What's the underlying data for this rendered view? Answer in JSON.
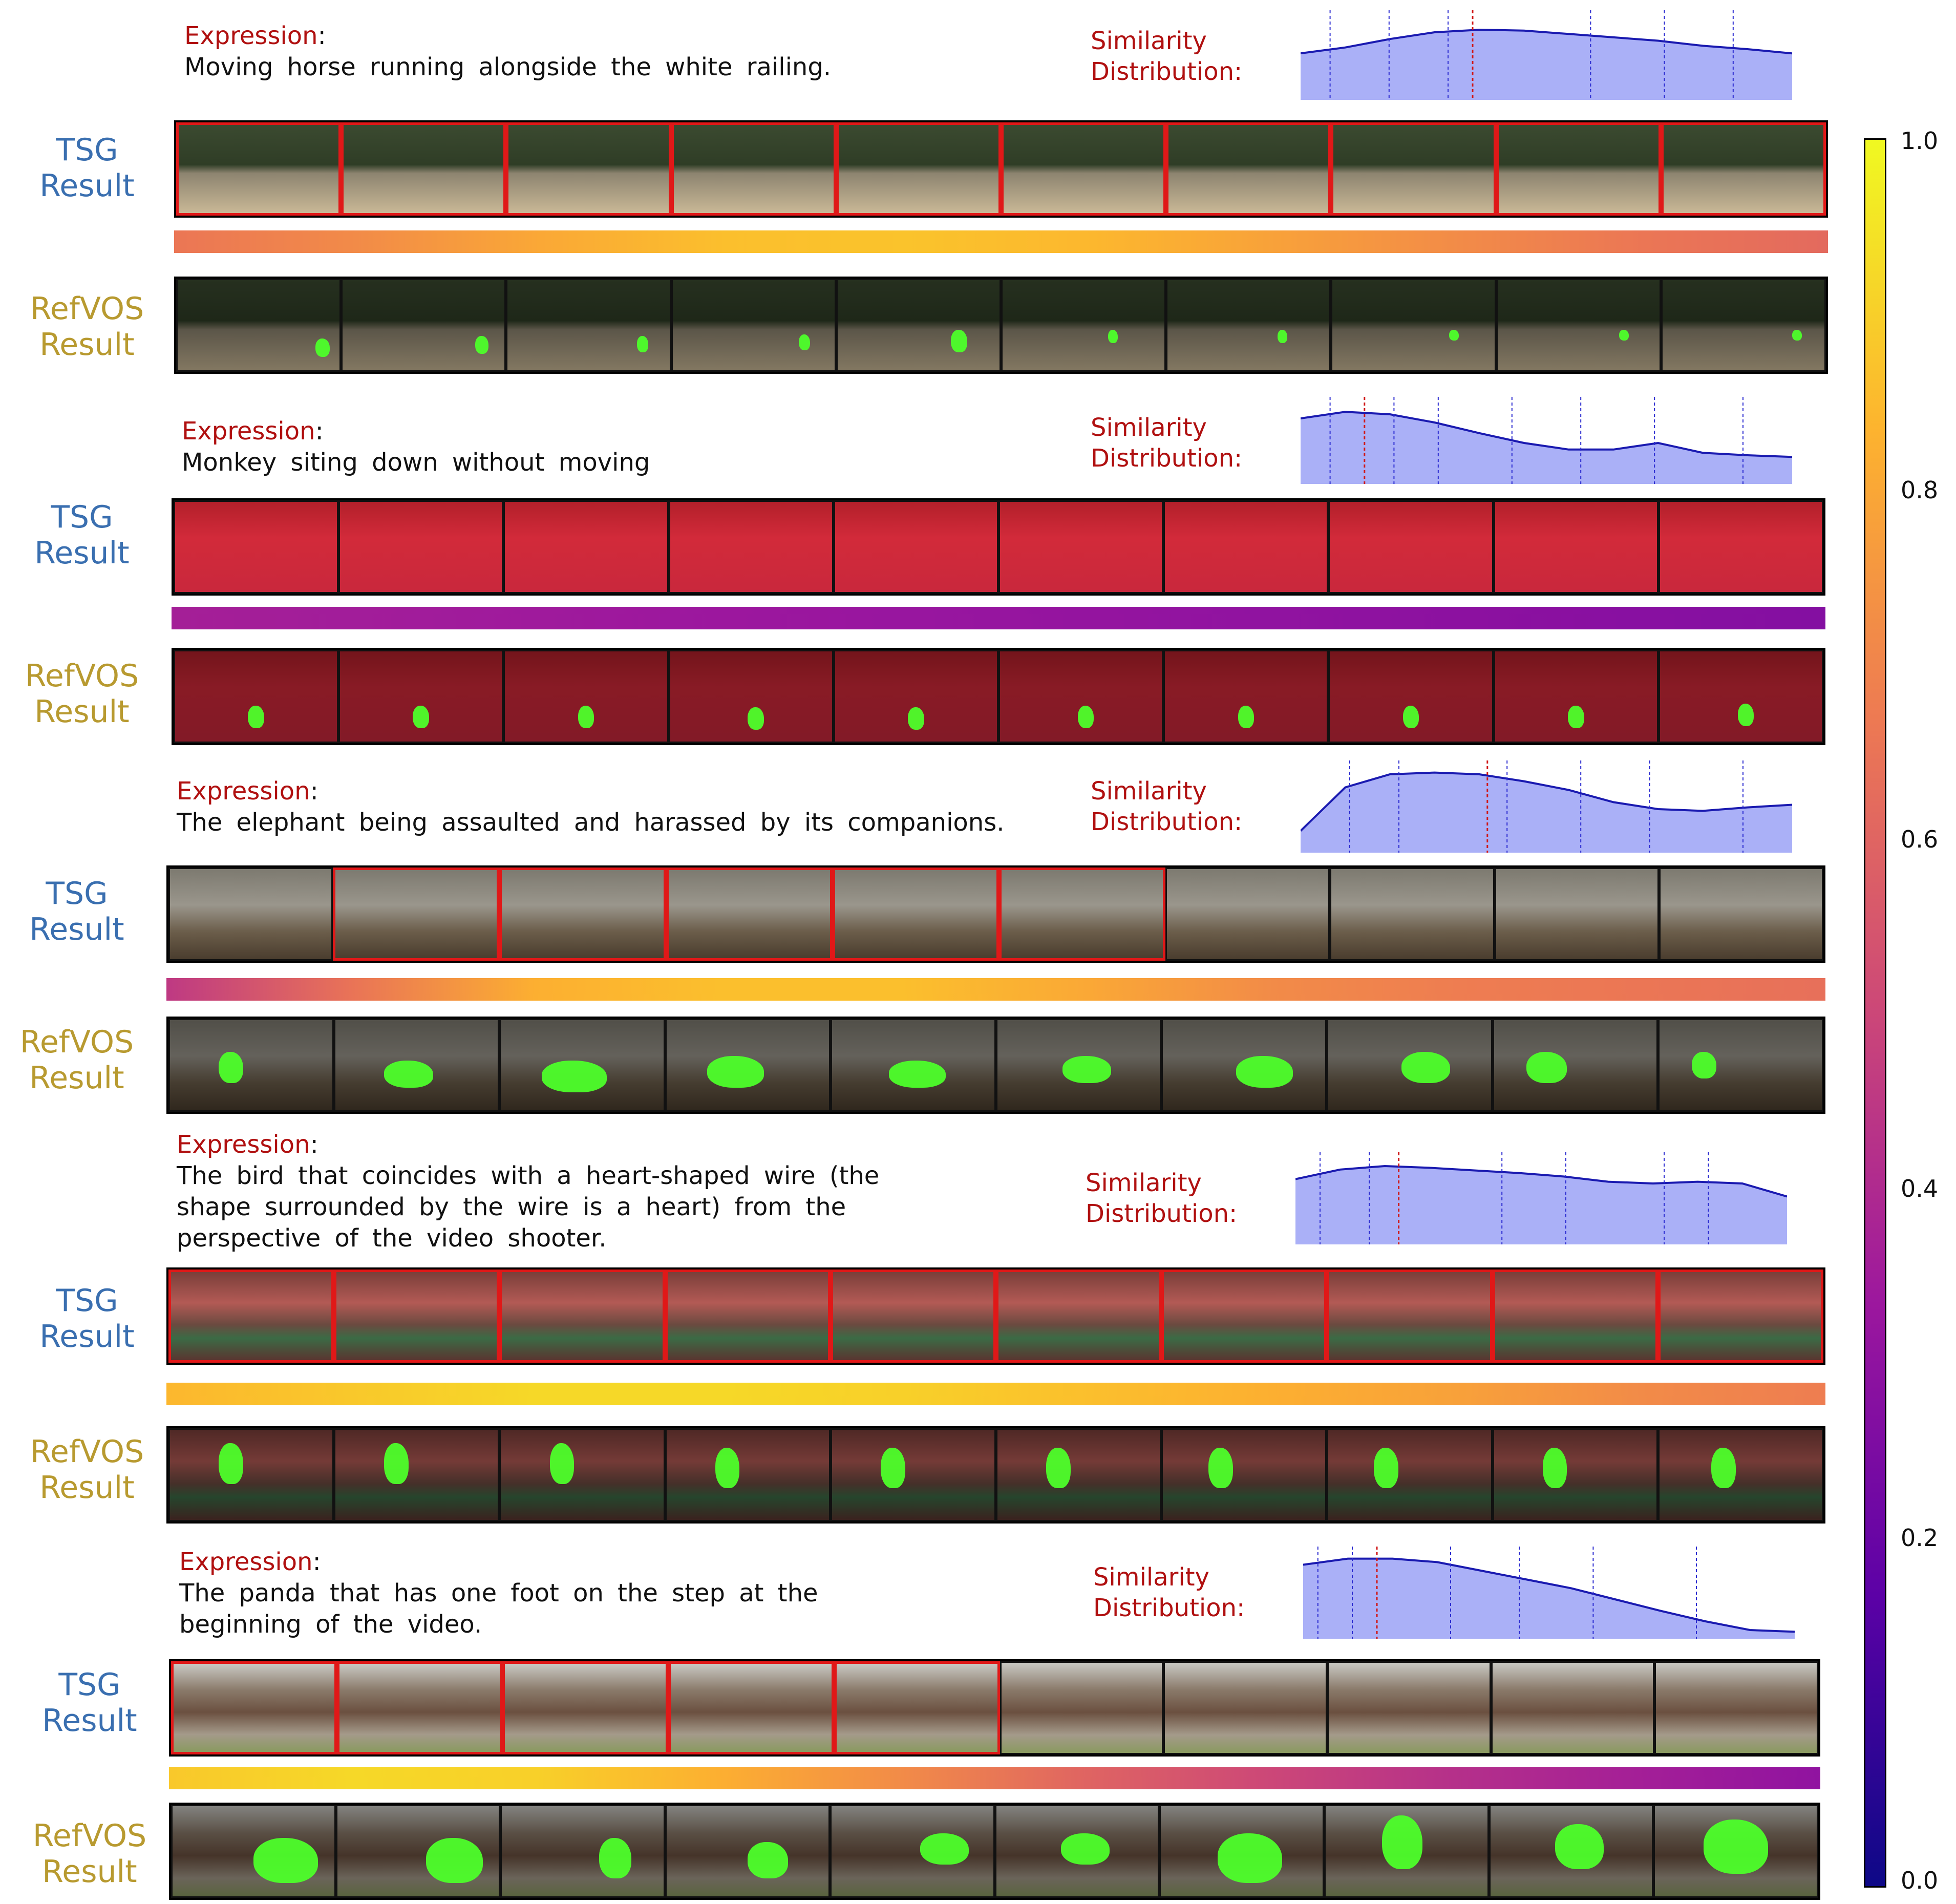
{
  "colorbar": {
    "ticks": [
      "1.0",
      "0.8",
      "0.6",
      "0.4",
      "0.2",
      "0.0"
    ],
    "tick_values": [
      1.0,
      0.8,
      0.6,
      0.4,
      0.2,
      0.0
    ],
    "colormap": "plasma"
  },
  "labels": {
    "expression": "Expression",
    "colon": ":",
    "sim_line1": "Similarity",
    "sim_line2": "Distribution:",
    "tsg_line1": "TSG",
    "tsg_line2": "Result",
    "refvos_line1": "RefVOS",
    "refvos_line2": "Result"
  },
  "examples": [
    {
      "expression_lines": [
        "Moving horse running alongside the white railing."
      ],
      "scene": "horse",
      "tsg_selected": [
        0,
        1,
        2,
        3,
        4,
        5,
        6,
        7,
        8,
        9
      ],
      "heat": [
        0.66,
        0.72,
        0.8,
        0.86,
        0.87,
        0.84,
        0.78,
        0.72,
        0.66,
        0.62
      ],
      "curve": [
        0.55,
        0.62,
        0.72,
        0.8,
        0.83,
        0.82,
        0.78,
        0.74,
        0.7,
        0.64,
        0.6,
        0.55
      ],
      "dashed_x": [
        0.06,
        0.18,
        0.3,
        0.35,
        0.59,
        0.74,
        0.88
      ],
      "red_x": 0.35,
      "masks": [
        [
          0.85,
          0.65,
          0.09,
          0.2
        ],
        [
          0.82,
          0.62,
          0.08,
          0.2
        ],
        [
          0.8,
          0.62,
          0.07,
          0.18
        ],
        [
          0.78,
          0.6,
          0.07,
          0.18
        ],
        [
          0.7,
          0.55,
          0.1,
          0.25
        ],
        [
          0.65,
          0.55,
          0.06,
          0.15
        ],
        [
          0.68,
          0.55,
          0.06,
          0.15
        ],
        [
          0.72,
          0.55,
          0.06,
          0.12
        ],
        [
          0.75,
          0.55,
          0.06,
          0.12
        ],
        [
          0.8,
          0.55,
          0.06,
          0.12
        ]
      ]
    },
    {
      "expression_lines": [
        "Monkey siting down without moving"
      ],
      "scene": "monkey",
      "tsg_selected": [],
      "heat": [
        0.36,
        0.35,
        0.34,
        0.33,
        0.32,
        0.31,
        0.3,
        0.29,
        0.28,
        0.27
      ],
      "curve": [
        0.8,
        0.88,
        0.85,
        0.75,
        0.62,
        0.5,
        0.42,
        0.42,
        0.5,
        0.38,
        0.35,
        0.33
      ],
      "dashed_x": [
        0.06,
        0.19,
        0.28,
        0.43,
        0.57,
        0.72,
        0.9
      ],
      "red_x": 0.13,
      "masks": [
        [
          0.45,
          0.6,
          0.1,
          0.25
        ],
        [
          0.45,
          0.6,
          0.1,
          0.25
        ],
        [
          0.45,
          0.6,
          0.1,
          0.25
        ],
        [
          0.48,
          0.62,
          0.1,
          0.25
        ],
        [
          0.45,
          0.62,
          0.1,
          0.25
        ],
        [
          0.48,
          0.6,
          0.1,
          0.25
        ],
        [
          0.45,
          0.6,
          0.1,
          0.25
        ],
        [
          0.45,
          0.6,
          0.1,
          0.25
        ],
        [
          0.45,
          0.6,
          0.1,
          0.25
        ],
        [
          0.48,
          0.58,
          0.1,
          0.25
        ]
      ]
    },
    {
      "expression_lines": [
        "The elephant being assaulted and harassed by its companions."
      ],
      "scene": "elephant",
      "tsg_selected": [
        1,
        2,
        3,
        4,
        5
      ],
      "heat": [
        0.45,
        0.65,
        0.82,
        0.86,
        0.86,
        0.8,
        0.72,
        0.68,
        0.66,
        0.64
      ],
      "curve": [
        0.25,
        0.75,
        0.9,
        0.92,
        0.9,
        0.82,
        0.72,
        0.58,
        0.5,
        0.48,
        0.52,
        0.55
      ],
      "dashed_x": [
        0.1,
        0.2,
        0.38,
        0.42,
        0.57,
        0.71,
        0.9
      ],
      "red_x": 0.38,
      "masks": [
        [
          0.3,
          0.35,
          0.15,
          0.35
        ],
        [
          0.3,
          0.45,
          0.3,
          0.3
        ],
        [
          0.25,
          0.45,
          0.4,
          0.35
        ],
        [
          0.25,
          0.4,
          0.35,
          0.35
        ],
        [
          0.35,
          0.45,
          0.35,
          0.3
        ],
        [
          0.4,
          0.4,
          0.3,
          0.3
        ],
        [
          0.45,
          0.4,
          0.35,
          0.35
        ],
        [
          0.45,
          0.35,
          0.3,
          0.35
        ],
        [
          0.2,
          0.35,
          0.25,
          0.35
        ],
        [
          0.2,
          0.35,
          0.15,
          0.3
        ]
      ]
    },
    {
      "expression_lines": [
        "The bird that coincides with a heart-shaped wire (the",
        "shape surrounded by the wire is a heart) from the",
        "perspective of the video shooter."
      ],
      "scene": "bird",
      "tsg_selected": [
        0,
        1,
        2,
        3,
        4,
        5,
        6,
        7,
        8,
        9
      ],
      "heat": [
        0.84,
        0.88,
        0.92,
        0.92,
        0.9,
        0.86,
        0.82,
        0.78,
        0.72,
        0.68
      ],
      "curve": [
        0.75,
        0.86,
        0.9,
        0.88,
        0.85,
        0.82,
        0.78,
        0.72,
        0.7,
        0.72,
        0.7,
        0.55
      ],
      "dashed_x": [
        0.05,
        0.15,
        0.21,
        0.42,
        0.55,
        0.75,
        0.84
      ],
      "red_x": 0.21,
      "masks": [
        [
          0.3,
          0.15,
          0.15,
          0.45
        ],
        [
          0.3,
          0.15,
          0.15,
          0.45
        ],
        [
          0.3,
          0.15,
          0.15,
          0.45
        ],
        [
          0.3,
          0.2,
          0.15,
          0.45
        ],
        [
          0.3,
          0.2,
          0.15,
          0.45
        ],
        [
          0.3,
          0.2,
          0.15,
          0.45
        ],
        [
          0.28,
          0.2,
          0.15,
          0.45
        ],
        [
          0.28,
          0.2,
          0.15,
          0.45
        ],
        [
          0.3,
          0.2,
          0.15,
          0.45
        ],
        [
          0.32,
          0.2,
          0.15,
          0.45
        ]
      ]
    },
    {
      "expression_lines": [
        "The panda that has one foot on the step at the",
        "beginning of the video."
      ],
      "scene": "panda",
      "tsg_selected": [
        0,
        1,
        2,
        3,
        4
      ],
      "heat": [
        0.88,
        0.92,
        0.9,
        0.82,
        0.72,
        0.6,
        0.5,
        0.42,
        0.36,
        0.3
      ],
      "curve": [
        0.85,
        0.92,
        0.92,
        0.88,
        0.78,
        0.68,
        0.58,
        0.45,
        0.32,
        0.2,
        0.1,
        0.08
      ],
      "dashed_x": [
        0.03,
        0.1,
        0.15,
        0.3,
        0.44,
        0.59,
        0.8
      ],
      "red_x": 0.15,
      "masks": [
        [
          0.5,
          0.35,
          0.4,
          0.5
        ],
        [
          0.55,
          0.35,
          0.35,
          0.5
        ],
        [
          0.6,
          0.35,
          0.2,
          0.45
        ],
        [
          0.5,
          0.4,
          0.25,
          0.4
        ],
        [
          0.55,
          0.3,
          0.3,
          0.35
        ],
        [
          0.4,
          0.3,
          0.3,
          0.35
        ],
        [
          0.35,
          0.3,
          0.4,
          0.55
        ],
        [
          0.35,
          0.1,
          0.25,
          0.6
        ],
        [
          0.4,
          0.2,
          0.3,
          0.5
        ],
        [
          0.3,
          0.15,
          0.4,
          0.6
        ]
      ]
    }
  ]
}
